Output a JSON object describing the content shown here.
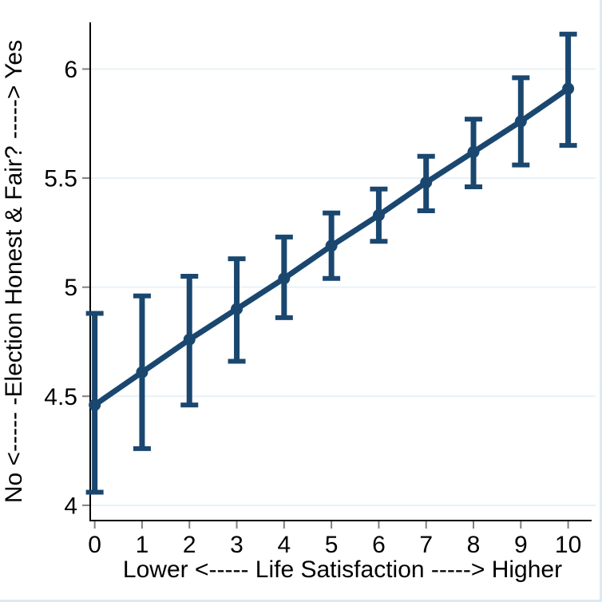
{
  "figure": {
    "background": "#ffffff",
    "border_color": "#dce9f1"
  },
  "chart_data": {
    "type": "line",
    "subtype": "point-estimates-with-confidence-intervals",
    "title": "",
    "xlabel": "Lower <----- Life Satisfaction -----> Higher",
    "ylabel": "No <----- -Election Honest & Fair? -----> Yes",
    "x": [
      0,
      1,
      2,
      3,
      4,
      5,
      6,
      7,
      8,
      9,
      10
    ],
    "estimates": [
      4.46,
      4.61,
      4.76,
      4.9,
      5.04,
      5.19,
      5.33,
      5.48,
      5.62,
      5.76,
      5.91
    ],
    "ci_lower": [
      4.06,
      4.26,
      4.46,
      4.66,
      4.86,
      5.04,
      5.21,
      5.35,
      5.46,
      5.56,
      5.65
    ],
    "ci_upper": [
      4.88,
      4.96,
      5.05,
      5.13,
      5.23,
      5.34,
      5.45,
      5.6,
      5.77,
      5.96,
      6.16
    ],
    "xticks": [
      0,
      1,
      2,
      3,
      4,
      5,
      6,
      7,
      8,
      9,
      10
    ],
    "xtick_labels": [
      "0",
      "1",
      "2",
      "3",
      "4",
      "5",
      "6",
      "7",
      "8",
      "9",
      "10"
    ],
    "yticks": [
      4,
      4.5,
      5,
      5.5,
      6
    ],
    "ytick_labels": [
      "4",
      "4.5",
      "5",
      "5.5",
      "6"
    ],
    "xlim": [
      -0.095,
      10.58
    ],
    "ylim": [
      3.93,
      6.214
    ],
    "grid": true,
    "legend": "none",
    "colors": {
      "series": "#1a476f",
      "grid": "#e9f1f6",
      "axis": "#000000",
      "tick": "#808080",
      "text": "#000000"
    }
  }
}
